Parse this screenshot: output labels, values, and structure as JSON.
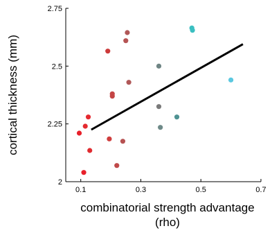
{
  "chart_data": {
    "type": "scatter",
    "title": "",
    "xlabel_line1": "combinatorial strength advantage",
    "xlabel_line2": "(rho)",
    "ylabel": "cortical thickness (mm)",
    "xlim": [
      0.05,
      0.7
    ],
    "ylim": [
      2.0,
      2.75
    ],
    "xticks": [
      0.1,
      0.3,
      0.5,
      0.7
    ],
    "xtick_labels": [
      "0.1",
      "0.3",
      "0.5",
      "0.7"
    ],
    "yticks": [
      2.0,
      2.25,
      2.5,
      2.75
    ],
    "ytick_labels": [
      "2",
      "2.25",
      "2.5",
      "2.75"
    ],
    "grid": false,
    "legend": false,
    "points": [
      {
        "x": 0.11,
        "y": 2.04,
        "color": "#e8202a"
      },
      {
        "x": 0.095,
        "y": 2.21,
        "color": "#e8202a"
      },
      {
        "x": 0.115,
        "y": 2.24,
        "color": "#e42a2f"
      },
      {
        "x": 0.125,
        "y": 2.28,
        "color": "#e52a30"
      },
      {
        "x": 0.13,
        "y": 2.135,
        "color": "#e02b30"
      },
      {
        "x": 0.19,
        "y": 2.565,
        "color": "#cc3a3a"
      },
      {
        "x": 0.195,
        "y": 2.185,
        "color": "#cf3d3d"
      },
      {
        "x": 0.205,
        "y": 2.37,
        "color": "#c44545"
      },
      {
        "x": 0.205,
        "y": 2.38,
        "color": "#c44545"
      },
      {
        "x": 0.22,
        "y": 2.07,
        "color": "#c04a4a"
      },
      {
        "x": 0.24,
        "y": 2.175,
        "color": "#b65252"
      },
      {
        "x": 0.25,
        "y": 2.61,
        "color": "#b55353"
      },
      {
        "x": 0.255,
        "y": 2.645,
        "color": "#b05858"
      },
      {
        "x": 0.26,
        "y": 2.43,
        "color": "#b05858"
      },
      {
        "x": 0.36,
        "y": 2.5,
        "color": "#6f8584"
      },
      {
        "x": 0.36,
        "y": 2.325,
        "color": "#7a7a7a"
      },
      {
        "x": 0.365,
        "y": 2.235,
        "color": "#6e8a88"
      },
      {
        "x": 0.42,
        "y": 2.28,
        "color": "#4f9393"
      },
      {
        "x": 0.47,
        "y": 2.665,
        "color": "#3bbfc1"
      },
      {
        "x": 0.472,
        "y": 2.655,
        "color": "#3bbfc1"
      },
      {
        "x": 0.6,
        "y": 2.44,
        "color": "#5bc8e0"
      }
    ],
    "regression_line": {
      "x": [
        0.135,
        0.64
      ],
      "y": [
        2.225,
        2.595
      ],
      "color": "#000000"
    }
  }
}
